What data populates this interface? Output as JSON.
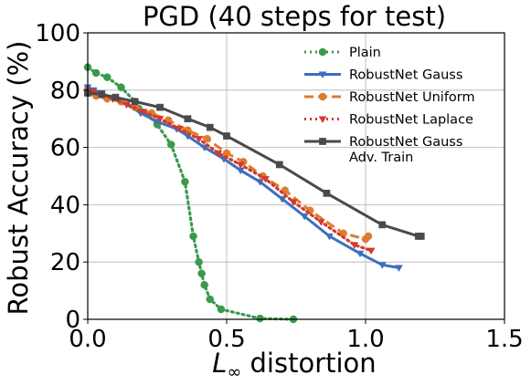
{
  "chart_data": {
    "type": "line",
    "title": "PGD (40 steps for test)",
    "xlabel": {
      "symbol": "L",
      "subscript": "∞",
      "rest": " distortion"
    },
    "ylabel": "Robust Accuracy (%)",
    "xlim": [
      0,
      1.5
    ],
    "ylim": [
      0,
      100
    ],
    "xticks": [
      0,
      0.5,
      1,
      1.5
    ],
    "xtick_labels": [
      "0.0",
      "0.5",
      "1.0",
      "1.5"
    ],
    "yticks": [
      0,
      20,
      40,
      60,
      80,
      100
    ],
    "ytick_labels": [
      "0",
      "20",
      "40",
      "60",
      "80",
      "100"
    ],
    "grid": true,
    "legend_position": "top-right",
    "series": [
      {
        "name": "Plain",
        "color": "#3a9a4c",
        "linestyle": "dotted",
        "marker": "circle",
        "x": [
          0.0,
          0.03,
          0.07,
          0.12,
          0.17,
          0.25,
          0.3,
          0.35,
          0.38,
          0.4,
          0.41,
          0.42,
          0.44,
          0.48,
          0.62,
          0.74
        ],
        "y": [
          88,
          86,
          84.5,
          81,
          76,
          68,
          61,
          48,
          29,
          20,
          16,
          12,
          7,
          3.5,
          0.3,
          0
        ]
      },
      {
        "name": "RobustNet Gauss",
        "color": "#3c6fbd",
        "linestyle": "solid",
        "marker": "triangle-down",
        "x": [
          0.0,
          0.02,
          0.05,
          0.09,
          0.14,
          0.19,
          0.25,
          0.32,
          0.36,
          0.42,
          0.49,
          0.55,
          0.62,
          0.7,
          0.78,
          0.87,
          0.98,
          1.06,
          1.12
        ],
        "y": [
          81,
          80,
          79,
          77,
          75,
          72,
          69,
          66.5,
          64,
          60,
          56,
          52,
          48,
          42,
          36,
          29,
          23,
          19,
          18
        ]
      },
      {
        "name": "RobustNet Uniform",
        "color": "#e07c2e",
        "linestyle": "dashed",
        "marker": "circle",
        "x": [
          0.0,
          0.03,
          0.07,
          0.12,
          0.17,
          0.23,
          0.29,
          0.36,
          0.43,
          0.5,
          0.56,
          0.63,
          0.71,
          0.8,
          0.92,
          1.0,
          1.01
        ],
        "y": [
          79,
          78,
          77,
          76,
          74,
          72,
          69.5,
          66,
          63,
          58,
          55,
          50,
          45,
          38,
          30,
          28,
          29
        ]
      },
      {
        "name": "RobustNet Laplace",
        "color": "#d23a2c",
        "linestyle": "dotted",
        "marker": "triangle-down",
        "x": [
          0.0,
          0.02,
          0.05,
          0.09,
          0.14,
          0.2,
          0.26,
          0.33,
          0.4,
          0.47,
          0.55,
          0.64,
          0.74,
          0.84,
          0.96,
          1.02
        ],
        "y": [
          80,
          79.5,
          78.5,
          77,
          75,
          72.5,
          70,
          66.5,
          63,
          58,
          54,
          49,
          41,
          34,
          26,
          24
        ]
      },
      {
        "name": "RobustNet Gauss\nAdv. Train",
        "color": "#4a4a4a",
        "linestyle": "solid",
        "marker": "square",
        "x": [
          0.0,
          0.05,
          0.1,
          0.17,
          0.26,
          0.36,
          0.44,
          0.5,
          0.69,
          0.86,
          1.06,
          1.19,
          1.2
        ],
        "y": [
          79,
          78.5,
          77.5,
          76,
          74,
          70,
          67,
          64,
          54,
          44,
          33,
          29,
          29
        ]
      }
    ]
  }
}
